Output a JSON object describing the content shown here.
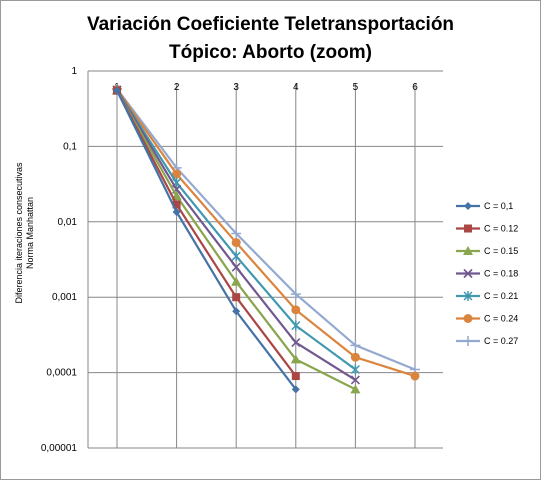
{
  "chart_data": {
    "type": "line",
    "title": [
      "Variación Coeficiente Teletransportación",
      "Tópico: Aborto (zoom)"
    ],
    "ylabel": [
      "Diferencia iteraciones consecutivas",
      "Norma Manhattan"
    ],
    "y_scale": "log",
    "ylim": [
      1e-05,
      1
    ],
    "y_ticks": [
      "1",
      "0,1",
      "0,01",
      "0,001",
      "0,0001",
      "0,00001"
    ],
    "x_ticks": [
      "1",
      "2",
      "3",
      "4",
      "5",
      "6"
    ],
    "xlim": [
      1,
      6
    ],
    "legend_position": "right",
    "grid": "horizontal",
    "series": [
      {
        "name": "C = 0,1",
        "color": "#4572a7",
        "marker": "diamond",
        "x": [
          1,
          2,
          3,
          4
        ],
        "y": [
          0.55,
          0.0135,
          0.00065,
          6e-05
        ]
      },
      {
        "name": "C = 0.12",
        "color": "#aa4643",
        "marker": "square",
        "x": [
          1,
          2,
          3,
          4
        ],
        "y": [
          0.55,
          0.017,
          0.001,
          9e-05
        ]
      },
      {
        "name": "C = 0.15",
        "color": "#89a54e",
        "marker": "triangle",
        "x": [
          1,
          2,
          3,
          4,
          5
        ],
        "y": [
          0.55,
          0.022,
          0.0016,
          0.00015,
          6e-05
        ]
      },
      {
        "name": "C = 0.18",
        "color": "#71588f",
        "marker": "x",
        "x": [
          1,
          2,
          3,
          4,
          5
        ],
        "y": [
          0.56,
          0.027,
          0.0025,
          0.00025,
          8e-05
        ]
      },
      {
        "name": "C = 0.21",
        "color": "#4198af",
        "marker": "asterisk",
        "x": [
          1,
          2,
          3,
          4,
          5
        ],
        "y": [
          0.56,
          0.033,
          0.0035,
          0.00042,
          0.00011
        ]
      },
      {
        "name": "C = 0.24",
        "color": "#db843d",
        "marker": "circle",
        "x": [
          1,
          2,
          3,
          4,
          5,
          6
        ],
        "y": [
          0.57,
          0.043,
          0.0053,
          0.00068,
          0.00016,
          9e-05
        ]
      },
      {
        "name": "C = 0.27",
        "color": "#93a9cf",
        "marker": "plus",
        "x": [
          1,
          2,
          3,
          4,
          5,
          6
        ],
        "y": [
          0.58,
          0.052,
          0.007,
          0.0011,
          0.00023,
          0.00011
        ]
      }
    ]
  }
}
